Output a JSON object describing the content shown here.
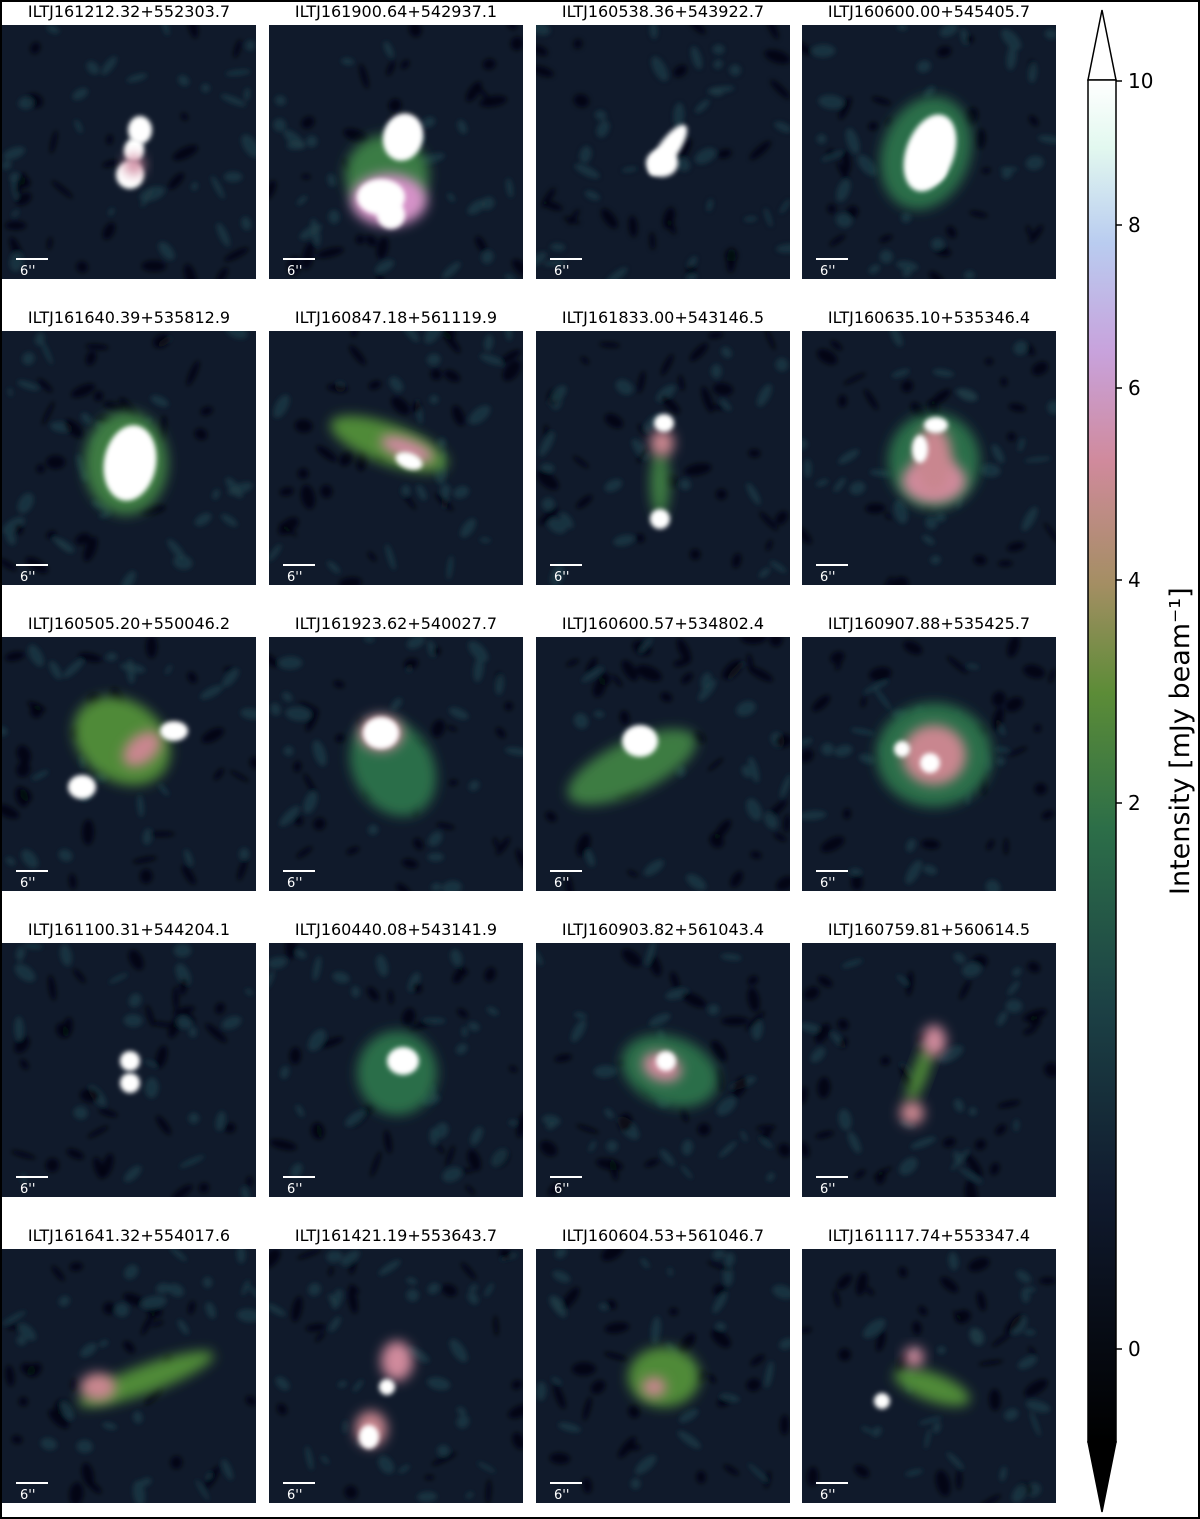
{
  "panels": [
    {
      "name": "ILTJ161212.32+552303.7",
      "scale": "6''"
    },
    {
      "name": "ILTJ161900.64+542937.1",
      "scale": "6''"
    },
    {
      "name": "ILTJ160538.36+543922.7",
      "scale": "6''"
    },
    {
      "name": "ILTJ160600.00+545405.7",
      "scale": "6''"
    },
    {
      "name": "ILTJ161640.39+535812.9",
      "scale": "6''"
    },
    {
      "name": "ILTJ160847.18+561119.9",
      "scale": "6''"
    },
    {
      "name": "ILTJ161833.00+543146.5",
      "scale": "6''"
    },
    {
      "name": "ILTJ160635.10+535346.4",
      "scale": "6''"
    },
    {
      "name": "ILTJ160505.20+550046.2",
      "scale": "6''"
    },
    {
      "name": "ILTJ161923.62+540027.7",
      "scale": "6''"
    },
    {
      "name": "ILTJ160600.57+534802.4",
      "scale": "6''"
    },
    {
      "name": "ILTJ160907.88+535425.7",
      "scale": "6''"
    },
    {
      "name": "ILTJ161100.31+544204.1",
      "scale": "6''"
    },
    {
      "name": "ILTJ160440.08+543141.9",
      "scale": "6''"
    },
    {
      "name": "ILTJ160903.82+561043.4",
      "scale": "6''"
    },
    {
      "name": "ILTJ160759.81+560614.5",
      "scale": "6''"
    },
    {
      "name": "ILTJ161641.32+554017.6",
      "scale": "6''"
    },
    {
      "name": "ILTJ161421.19+553643.7",
      "scale": "6''"
    },
    {
      "name": "ILTJ160604.53+561046.7",
      "scale": "6''"
    },
    {
      "name": "ILTJ161117.74+553347.4",
      "scale": "6''"
    }
  ],
  "colorbar": {
    "label": "Intensity [mJy beam⁻¹]",
    "ticks": [
      "10",
      "8",
      "6",
      "4",
      "2",
      "0"
    ],
    "colors": [
      "#000000",
      "#0f1a2e",
      "#1c3d45",
      "#2a6b4c",
      "#4f8a38",
      "#9a8f5a",
      "#c9868f",
      "#d592c8",
      "#c3b6ec",
      "#c9eef0",
      "#ffffff"
    ]
  }
}
